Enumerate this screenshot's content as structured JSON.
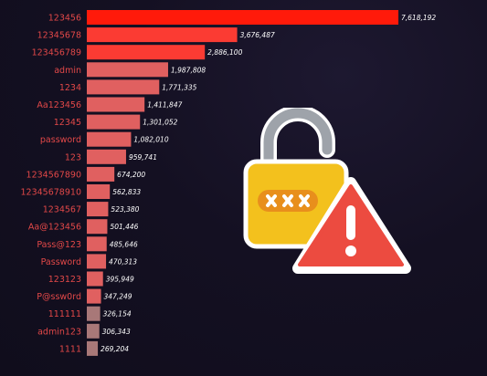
{
  "chart_data": {
    "type": "bar",
    "orientation": "horizontal",
    "categories": [
      "123456",
      "12345678",
      "123456789",
      "admin",
      "1234",
      "Aa123456",
      "12345",
      "password",
      "123",
      "1234567890",
      "12345678910",
      "1234567",
      "Aa@123456",
      "Pass@123",
      "Password",
      "123123",
      "P@ssw0rd",
      "111111",
      "admin123",
      "1111"
    ],
    "values": [
      7618192,
      3676487,
      2886100,
      1987808,
      1771335,
      1411847,
      1301052,
      1082010,
      959741,
      674200,
      562833,
      523380,
      501446,
      485646,
      470313,
      395949,
      347249,
      326154,
      306343,
      269204
    ],
    "value_labels": [
      "7,618,192",
      "3,676,487",
      "2,886,100",
      "1,987,808",
      "1,771,335",
      "1,411,847",
      "1,301,052",
      "1,082,010",
      "959,741",
      "674,200",
      "562,833",
      "523,380",
      "501,446",
      "485,646",
      "470,313",
      "395,949",
      "347,249",
      "326,154",
      "306,343",
      "269,204"
    ],
    "xlim": [
      0,
      7618192
    ],
    "grid": false,
    "title": "",
    "xlabel": "",
    "ylabel": ""
  },
  "colors": {
    "top_bar": "#ff1a0a",
    "high_bars": "#fb3b33",
    "mid_bars": "#e06060",
    "low_bars": "#a87878",
    "category_text": "#e24848",
    "value_text": "#ffffff",
    "background": "#141022"
  },
  "illustration": {
    "icons": [
      "padlock-icon",
      "warning-triangle-icon"
    ]
  }
}
